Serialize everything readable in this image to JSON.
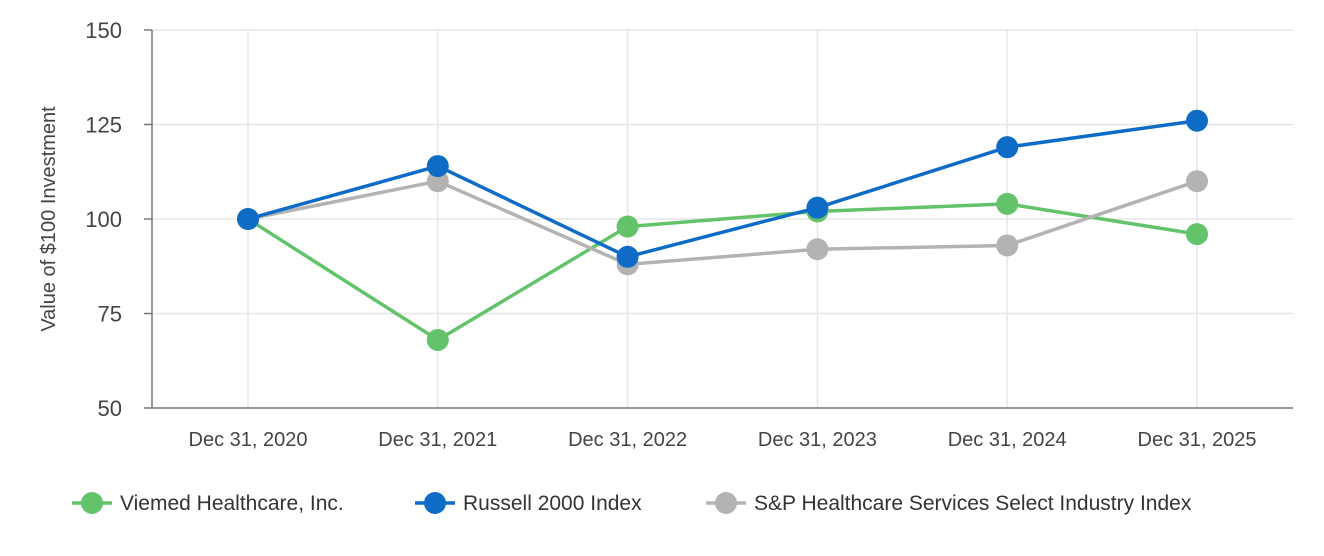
{
  "chart_data": {
    "type": "line",
    "title": "",
    "xlabel": "",
    "ylabel": "Value of $100 Investment",
    "categories": [
      "Dec 31, 2020",
      "Dec 31, 2021",
      "Dec 31, 2022",
      "Dec 31, 2023",
      "Dec 31, 2024",
      "Dec 31, 2025"
    ],
    "ylim": [
      50,
      150
    ],
    "yticks": [
      50,
      75,
      100,
      125,
      150
    ],
    "grid": true,
    "legend_position": "bottom",
    "series": [
      {
        "name": "Viemed Healthcare, Inc.",
        "color": "#62c36a",
        "values": [
          100,
          68,
          98,
          102,
          104,
          96
        ]
      },
      {
        "name": "S&P Healthcare Services Select Industry Index",
        "color": "#b3b3b3",
        "values": [
          100,
          110,
          88,
          92,
          93,
          110
        ]
      },
      {
        "name": "Russell 2000 Index",
        "color": "#0f6cc6",
        "values": [
          100,
          114,
          90,
          103,
          119,
          126
        ]
      }
    ],
    "legend_order": [
      0,
      2,
      1
    ]
  }
}
